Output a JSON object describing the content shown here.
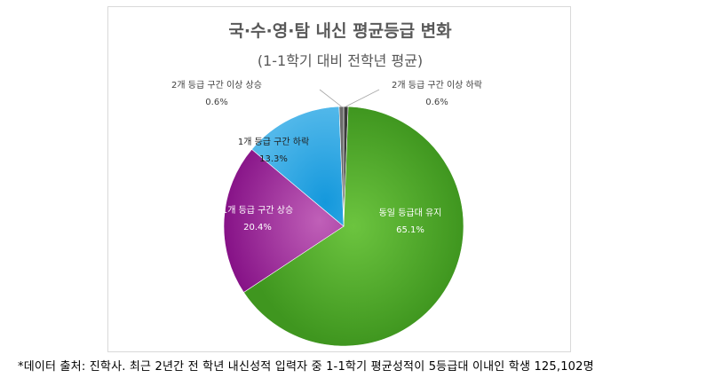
{
  "chart_data": {
    "type": "pie",
    "title": "국·수·영·탐 내신 평균등급 변화",
    "subtitle": "(1-1학기 대비 전학년 평균)",
    "slices": [
      {
        "label": "동일 등급대 유지",
        "value": 65.1,
        "display": "65.1%",
        "color": "#4ca32a",
        "text_color": "#ffffff"
      },
      {
        "label": "1개 등급 구간 상승",
        "value": 20.4,
        "display": "20.4%",
        "color": "#8e1a8f",
        "text_color": "#ffffff"
      },
      {
        "label": "1개 등급 구간 하락",
        "value": 13.3,
        "display": "13.3%",
        "color": "#1aa0df",
        "text_color": "#1f1f1f"
      },
      {
        "label": "2개 등급 구간 이상 상승",
        "value": 0.6,
        "display": "0.6%",
        "color": "#6b6b6b",
        "text_color": "#404040"
      },
      {
        "label": "2개 등급 구간 이상 하락",
        "value": 0.6,
        "display": "0.6%",
        "color": "#3a3a3a",
        "text_color": "#404040"
      }
    ]
  },
  "footnote": "*데이터 출처: 진학사. 최근 2년간 전 학년 내신성적 입력자 중 1-1학기 평균성적이 5등급대 이내인 학생 125,102명"
}
